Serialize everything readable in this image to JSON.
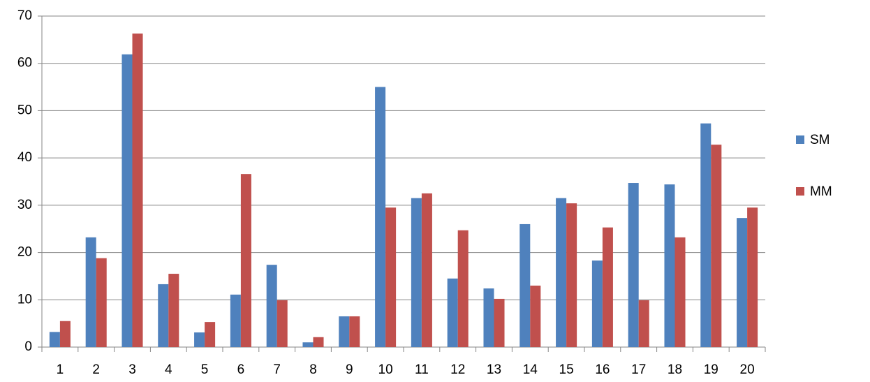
{
  "chart_data": {
    "type": "bar",
    "categories": [
      "1",
      "2",
      "3",
      "4",
      "5",
      "6",
      "7",
      "8",
      "9",
      "10",
      "11",
      "12",
      "13",
      "14",
      "15",
      "16",
      "17",
      "18",
      "19",
      "20"
    ],
    "series": [
      {
        "name": "SM",
        "color": "#4f81bd",
        "values": [
          3.2,
          23.2,
          61.9,
          13.3,
          3.1,
          11.1,
          17.4,
          1.0,
          6.5,
          55.0,
          31.5,
          14.5,
          12.4,
          26.0,
          31.5,
          18.3,
          34.7,
          34.4,
          47.3,
          27.3
        ]
      },
      {
        "name": "MM",
        "color": "#c0504d",
        "values": [
          5.5,
          18.8,
          66.3,
          15.5,
          5.3,
          36.6,
          9.9,
          2.1,
          6.5,
          29.5,
          32.5,
          24.7,
          10.2,
          13.0,
          30.4,
          25.3,
          9.9,
          23.2,
          42.8,
          29.5
        ]
      }
    ],
    "ylim": [
      0,
      70
    ],
    "yticks": [
      0,
      10,
      20,
      30,
      40,
      50,
      60,
      70
    ],
    "grid": true,
    "legend": "right"
  }
}
